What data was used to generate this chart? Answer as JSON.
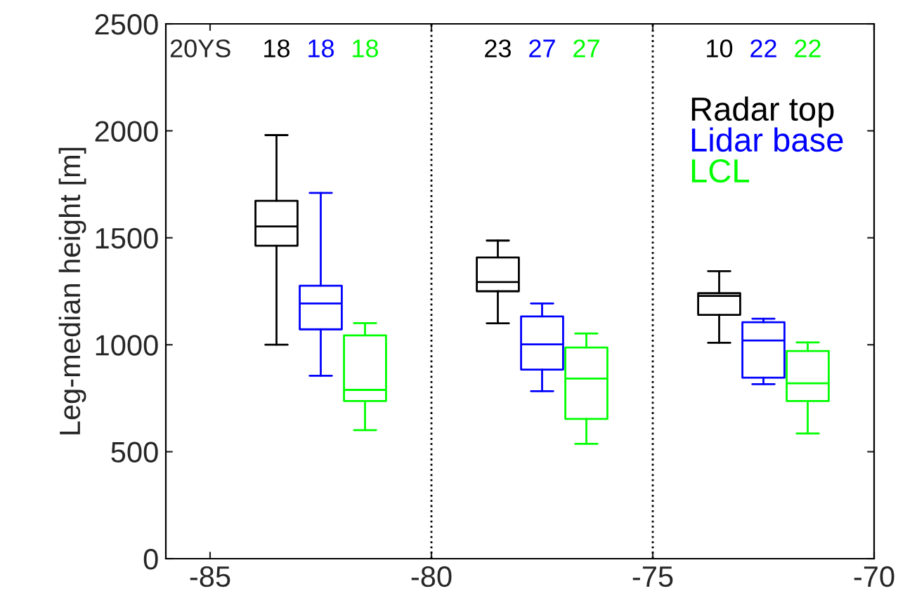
{
  "chart_data": {
    "type": "box",
    "ylabel": "Leg-median height [m]",
    "xlim": [
      -86,
      -70
    ],
    "xticks": [
      -85,
      -80,
      -75,
      -70
    ],
    "ylim": [
      0,
      2500
    ],
    "yticks": [
      0,
      500,
      1000,
      1500,
      2000,
      2500
    ],
    "grid": false,
    "legend": "top right",
    "annotations": [
      "20YS"
    ],
    "ref_lines": [
      {
        "axis": "x",
        "value": -80,
        "color": "#000000",
        "line_style": "dotted"
      },
      {
        "axis": "x",
        "value": -75,
        "color": "#000000",
        "line_style": "dotted"
      }
    ],
    "series": [
      {
        "name": "Radar top",
        "color": "#000000",
        "x": [
          -83.5,
          -78.5,
          -73.5
        ],
        "value_labels": [
          "18",
          "23",
          "10"
        ],
        "boxes": [
          {
            "low": 1000,
            "q1": 1463,
            "median": 1553,
            "q3": 1673,
            "high": 1980
          },
          {
            "low": 1100,
            "q1": 1250,
            "median": 1293,
            "q3": 1408,
            "high": 1487
          },
          {
            "low": 1009,
            "q1": 1140,
            "median": 1228,
            "q3": 1241,
            "high": 1344
          }
        ]
      },
      {
        "name": "Lidar base",
        "color": "#0000ff",
        "x": [
          -82.5,
          -77.5,
          -72.5
        ],
        "value_labels": [
          "18",
          "27",
          "22"
        ],
        "boxes": [
          {
            "low": 855,
            "q1": 1072,
            "median": 1193,
            "q3": 1276,
            "high": 1710
          },
          {
            "low": 783,
            "q1": 884,
            "median": 1002,
            "q3": 1132,
            "high": 1193
          },
          {
            "low": 816,
            "q1": 846,
            "median": 1020,
            "q3": 1105,
            "high": 1122
          }
        ]
      },
      {
        "name": "LCL",
        "color": "#00ff00",
        "x": [
          -81.5,
          -76.5,
          -71.5
        ],
        "value_labels": [
          "18",
          "27",
          "22"
        ],
        "boxes": [
          {
            "low": 601,
            "q1": 737,
            "median": 789,
            "q3": 1044,
            "high": 1101
          },
          {
            "low": 537,
            "q1": 653,
            "median": 842,
            "q3": 987,
            "high": 1053
          },
          {
            "low": 585,
            "q1": 737,
            "median": 820,
            "q3": 971,
            "high": 1011
          }
        ]
      }
    ]
  }
}
